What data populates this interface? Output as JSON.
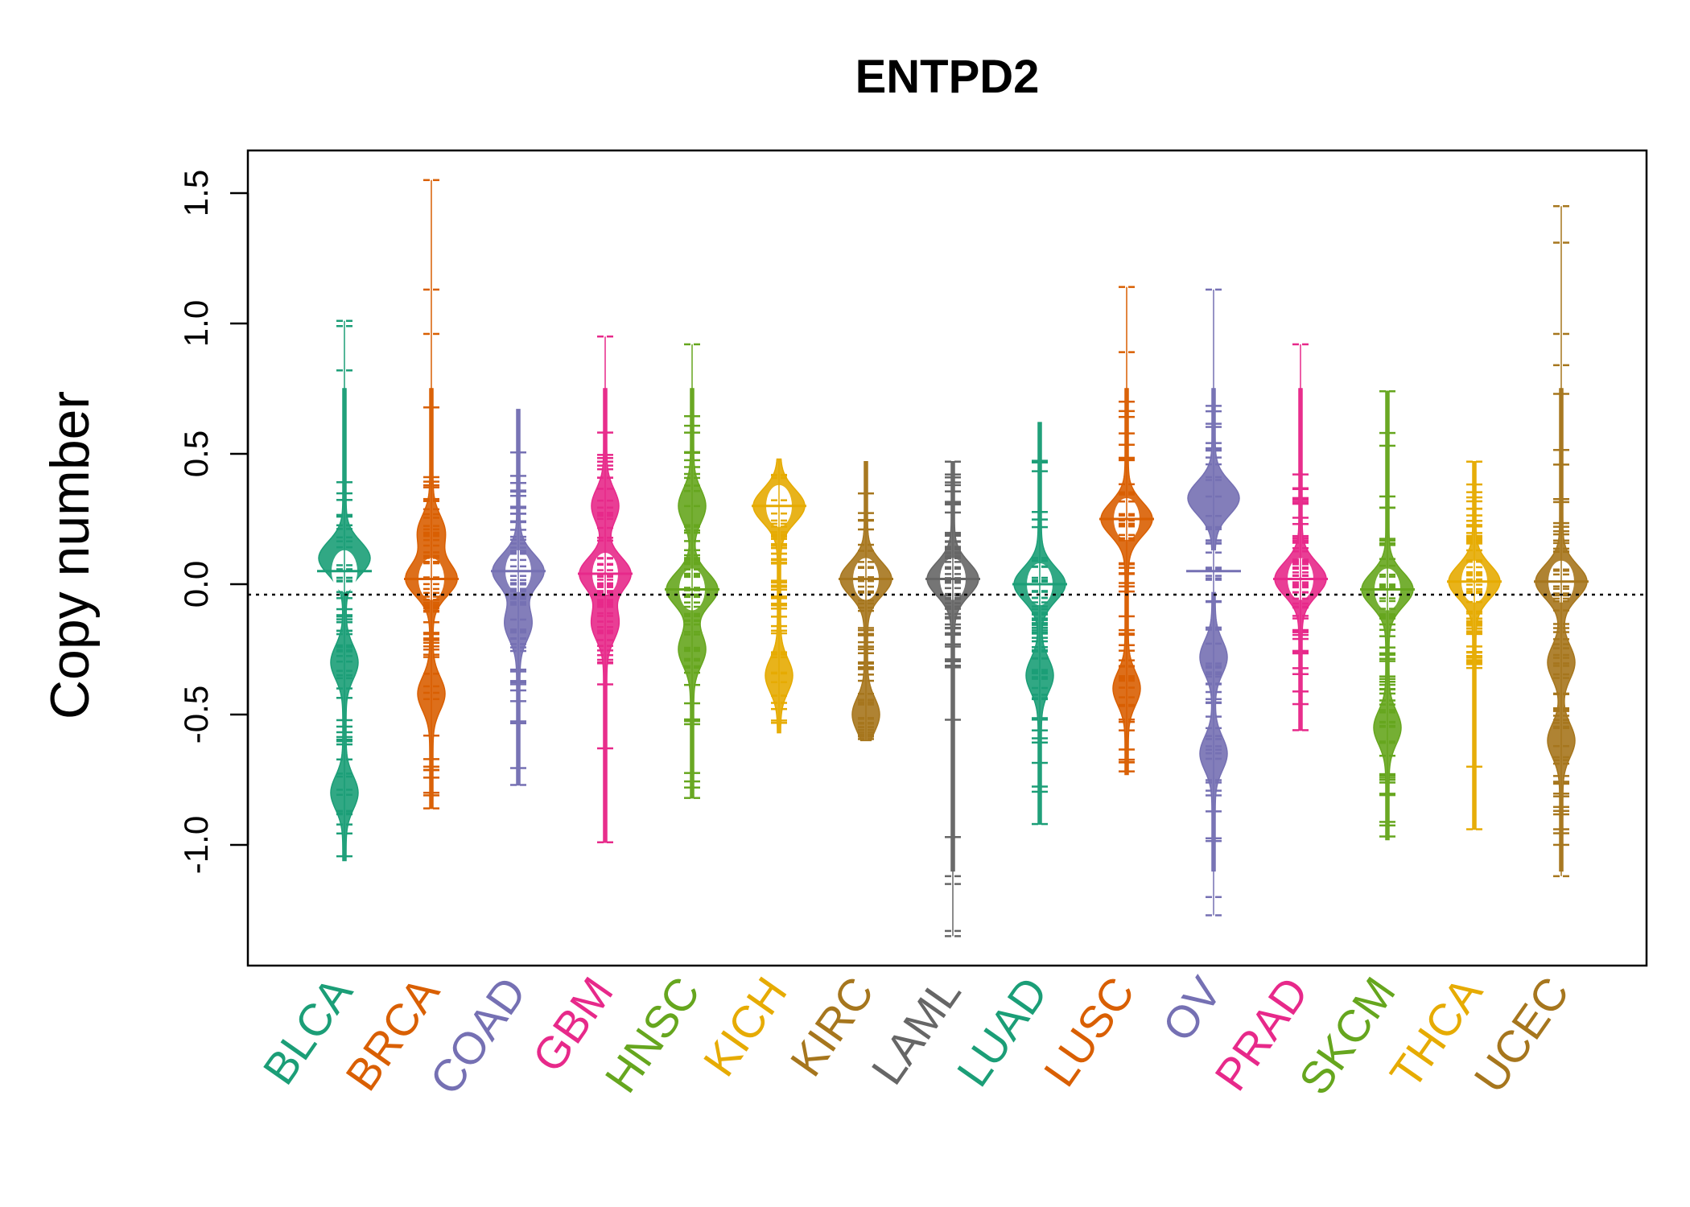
{
  "chart_data": {
    "type": "beanplot",
    "title": "ENTPD2",
    "xlabel": "",
    "ylabel": "Copy number",
    "ylim": [
      -1.45,
      1.66
    ],
    "yticks": [
      -1.0,
      -0.5,
      0.0,
      0.5,
      1.0,
      1.5
    ],
    "ytick_labels": [
      "-1.0",
      "-0.5",
      "0.0",
      "0.5",
      "1.0",
      "1.5"
    ],
    "reference_line": -0.04,
    "categories": [
      "BLCA",
      "BRCA",
      "COAD",
      "GBM",
      "HNSC",
      "KICH",
      "KIRC",
      "LAML",
      "LUAD",
      "LUSC",
      "OV",
      "PRAD",
      "SKCM",
      "THCA",
      "UCEC"
    ],
    "colors": [
      "#1B9E77",
      "#D95F02",
      "#7570B3",
      "#E7298A",
      "#66A61E",
      "#E6AB02",
      "#A6761D",
      "#666666",
      "#1B9E77",
      "#D95F02",
      "#7570B3",
      "#E7298A",
      "#66A61E",
      "#E6AB02",
      "#A6761D"
    ],
    "series": [
      {
        "name": "BLCA",
        "median": 0.05,
        "min": -1.06,
        "max": 1.01,
        "outliers": [
          1.01,
          0.99,
          0.82
        ],
        "peaks": [
          0.1,
          -0.3,
          -0.8
        ]
      },
      {
        "name": "BRCA",
        "median": 0.02,
        "min": -0.86,
        "max": 1.55,
        "outliers": [
          1.55,
          1.13,
          0.96,
          -0.8,
          -0.86
        ],
        "peaks": [
          0.02,
          0.2,
          -0.42
        ]
      },
      {
        "name": "COAD",
        "median": 0.05,
        "min": -0.77,
        "max": 0.67,
        "outliers": [
          -0.77
        ],
        "peaks": [
          0.05,
          -0.15
        ]
      },
      {
        "name": "GBM",
        "median": 0.04,
        "min": -0.99,
        "max": 0.95,
        "outliers": [
          0.95,
          -0.99
        ],
        "peaks": [
          0.04,
          -0.15,
          0.3
        ]
      },
      {
        "name": "HNSC",
        "median": -0.02,
        "min": -0.82,
        "max": 0.92,
        "outliers": [
          0.92,
          -0.78,
          -0.82
        ],
        "peaks": [
          -0.02,
          0.3,
          -0.25
        ]
      },
      {
        "name": "KICH",
        "median": 0.3,
        "min": -0.57,
        "max": 0.48,
        "outliers": [],
        "peaks": [
          0.3,
          -0.35
        ]
      },
      {
        "name": "KIRC",
        "median": 0.02,
        "min": -0.6,
        "max": 0.47,
        "outliers": [],
        "peaks": [
          0.02,
          -0.5
        ]
      },
      {
        "name": "LAML",
        "median": 0.02,
        "min": -1.35,
        "max": 0.47,
        "outliers": [
          0.47,
          0.38,
          -0.52,
          -0.97,
          -1.12,
          -1.15,
          -1.33,
          -1.35
        ],
        "peaks": [
          0.02
        ]
      },
      {
        "name": "LUAD",
        "median": 0.0,
        "min": -0.92,
        "max": 0.62,
        "outliers": [
          -0.92
        ],
        "peaks": [
          0.0,
          -0.35
        ]
      },
      {
        "name": "LUSC",
        "median": 0.25,
        "min": -0.73,
        "max": 1.14,
        "outliers": [
          1.14,
          0.89,
          0.7
        ],
        "peaks": [
          0.25,
          -0.4
        ]
      },
      {
        "name": "OV",
        "median": 0.05,
        "min": -1.27,
        "max": 1.13,
        "outliers": [
          1.13,
          -1.2,
          -1.27
        ],
        "peaks": [
          0.33,
          -0.28,
          -0.65
        ]
      },
      {
        "name": "PRAD",
        "median": 0.02,
        "min": -0.56,
        "max": 0.92,
        "outliers": [
          0.92,
          -0.46,
          -0.56
        ],
        "peaks": [
          0.02
        ]
      },
      {
        "name": "SKCM",
        "median": -0.02,
        "min": -0.98,
        "max": 0.74,
        "outliers": [
          0.74,
          0.58
        ],
        "peaks": [
          -0.02,
          -0.55
        ]
      },
      {
        "name": "THCA",
        "median": 0.01,
        "min": -0.94,
        "max": 0.47,
        "outliers": [
          0.47,
          -0.7,
          -0.94
        ],
        "peaks": [
          0.01
        ]
      },
      {
        "name": "UCEC",
        "median": 0.01,
        "min": -1.12,
        "max": 1.45,
        "outliers": [
          1.45,
          1.31,
          0.96,
          0.84,
          0.73,
          -0.94,
          -1.12
        ],
        "peaks": [
          0.01,
          -0.3,
          -0.6
        ]
      }
    ]
  }
}
